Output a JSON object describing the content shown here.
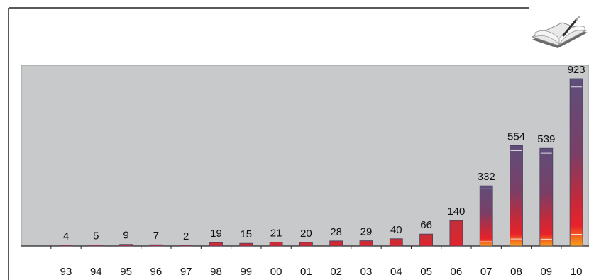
{
  "icon": "notebook-pen-icon",
  "colors": {
    "plot_background": "#c8c9cb",
    "bar_top": "#5e4e7a",
    "bar_mid": "#8a3a5a",
    "bar_low": "#e0202a",
    "bar_base": "#f7a21a",
    "frame": "#222222"
  },
  "chart_data": {
    "type": "bar",
    "categories": [
      "93",
      "94",
      "95",
      "96",
      "97",
      "98",
      "99",
      "00",
      "01",
      "02",
      "03",
      "04",
      "05",
      "06",
      "07",
      "08",
      "09",
      "10"
    ],
    "values": [
      4,
      5,
      9,
      7,
      2,
      19,
      15,
      21,
      20,
      28,
      29,
      40,
      66,
      140,
      332,
      554,
      539,
      923
    ],
    "data_labels": [
      "4",
      "5",
      "9",
      "7",
      "2",
      "19",
      "15",
      "21",
      "20",
      "28",
      "29",
      "40",
      "66",
      "140",
      "332",
      "554",
      "539",
      "923"
    ],
    "title": "",
    "xlabel": "",
    "ylabel": "",
    "ylim": [
      0,
      923
    ],
    "grid": false,
    "legend": "none"
  }
}
